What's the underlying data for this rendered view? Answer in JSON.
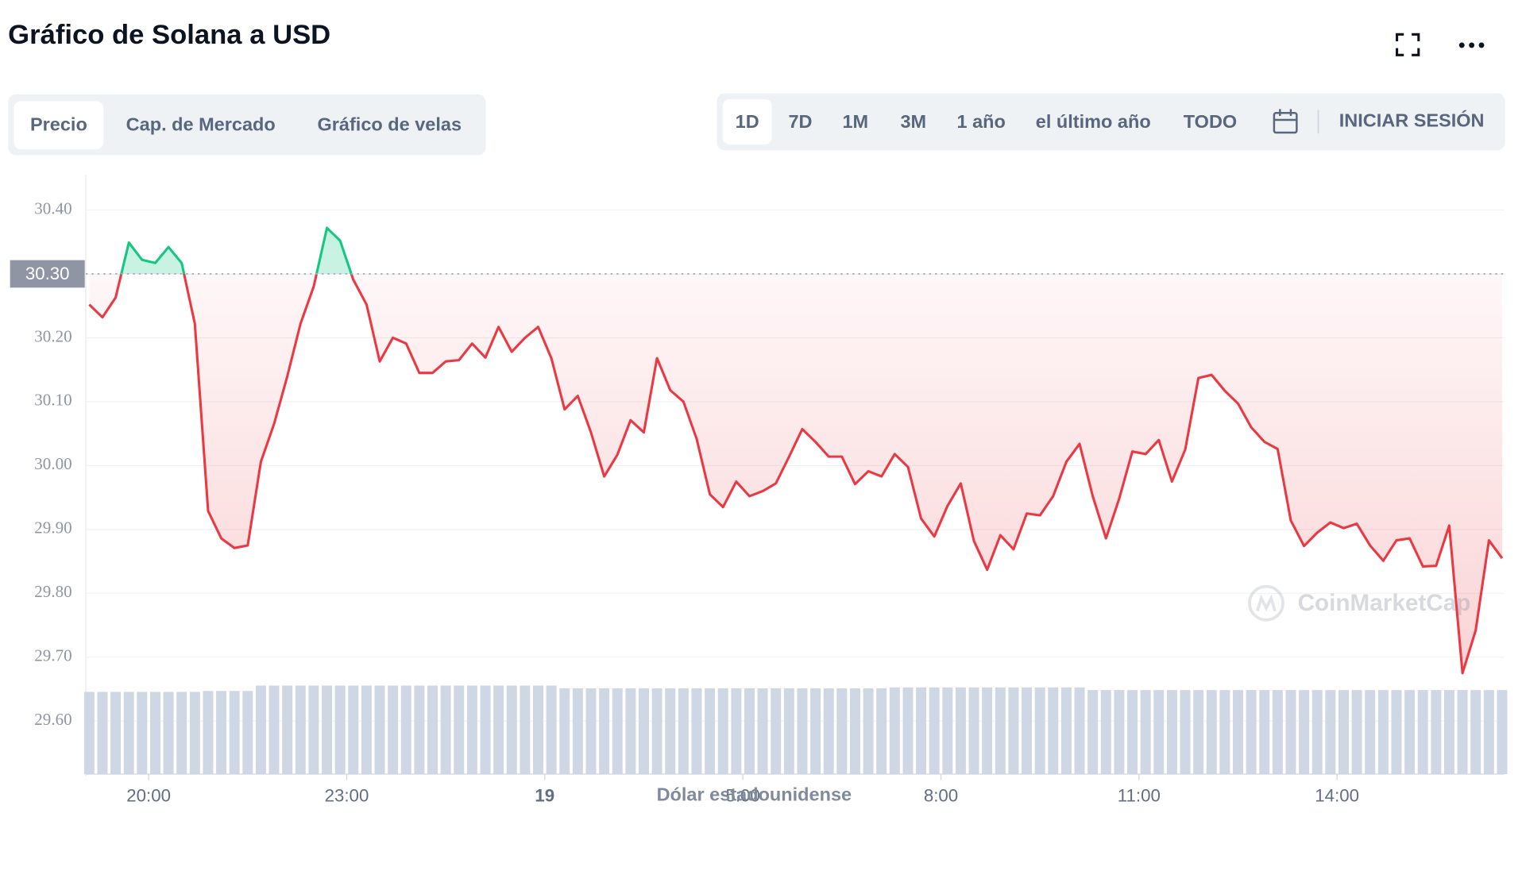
{
  "header": {
    "title": "Gráfico de Solana a USD"
  },
  "tabs": [
    "Precio",
    "Cap. de Mercado",
    "Gráfico de velas"
  ],
  "selected_tab": 0,
  "ranges": [
    "1D",
    "7D",
    "1M",
    "3M",
    "1 año",
    "el último año",
    "TODO"
  ],
  "selected_range": 0,
  "login": "INICIAR SESIÓN",
  "chart_data": {
    "type": "line",
    "xlabel": "Dólar estadounidense",
    "watermark": "CoinMarketCap",
    "up_color": "#16c784",
    "down_color": "#ea3943",
    "volume_color": "#cfd6e4",
    "reference": {
      "value": 30.3,
      "label": "30.30"
    },
    "xlim": [
      19.047,
      40.53
    ],
    "ylim": [
      29.517,
      30.455
    ],
    "xticks": [
      {
        "value": 20,
        "label": "20:00"
      },
      {
        "value": 23,
        "label": "23:00"
      },
      {
        "value": 26,
        "label": "19"
      },
      {
        "value": 29,
        "label": "5:00"
      },
      {
        "value": 32,
        "label": "8:00"
      },
      {
        "value": 35,
        "label": "11:00"
      },
      {
        "value": 38,
        "label": "14:00"
      }
    ],
    "yticks": [
      {
        "value": 29.6,
        "label": "29.60"
      },
      {
        "value": 29.7,
        "label": "29.70"
      },
      {
        "value": 29.8,
        "label": "29.80"
      },
      {
        "value": 29.9,
        "label": "29.90"
      },
      {
        "value": 30.0,
        "label": "30.00"
      },
      {
        "value": 30.1,
        "label": "30.10"
      },
      {
        "value": 30.2,
        "label": "30.20"
      },
      {
        "value": 30.3,
        "label": "30.30"
      },
      {
        "value": 30.4,
        "label": "30.40"
      }
    ],
    "grid": true,
    "x": [
      19.1,
      19.3,
      19.5,
      19.7,
      19.9,
      20.1,
      20.3,
      20.5,
      20.7,
      20.9,
      21.1,
      21.3,
      21.5,
      21.7,
      21.9,
      22.1,
      22.3,
      22.5,
      22.7,
      22.9,
      23.1,
      23.3,
      23.5,
      23.7,
      23.9,
      24.1,
      24.3,
      24.5,
      24.7,
      24.9,
      25.1,
      25.3,
      25.5,
      25.7,
      25.9,
      26.1,
      26.3,
      26.5,
      26.7,
      26.9,
      27.1,
      27.3,
      27.5,
      27.7,
      27.9,
      28.1,
      28.3,
      28.5,
      28.7,
      28.9,
      29.1,
      29.3,
      29.5,
      29.7,
      29.9,
      30.1,
      30.3,
      30.5,
      30.7,
      30.9,
      31.1,
      31.3,
      31.5,
      31.7,
      31.9,
      32.1,
      32.3,
      32.5,
      32.7,
      32.9,
      33.1,
      33.3,
      33.5,
      33.7,
      33.9,
      34.1,
      34.3,
      34.5,
      34.7,
      34.9,
      35.1,
      35.3,
      35.5,
      35.7,
      35.9,
      36.1,
      36.3,
      36.5,
      36.7,
      36.9,
      37.1,
      37.3,
      37.5,
      37.7,
      37.9,
      38.1,
      38.3,
      38.5,
      38.7,
      38.9,
      39.1,
      39.3,
      39.5,
      39.7,
      39.9,
      40.1,
      40.3,
      40.5
    ],
    "values": [
      30.252,
      30.232,
      30.263,
      30.349,
      30.322,
      30.317,
      30.342,
      30.317,
      30.222,
      29.929,
      29.886,
      29.871,
      29.875,
      30.006,
      30.065,
      30.14,
      30.222,
      30.28,
      30.372,
      30.352,
      30.291,
      30.252,
      30.163,
      30.2,
      30.191,
      30.145,
      30.145,
      30.163,
      30.165,
      30.191,
      30.169,
      30.217,
      30.178,
      30.2,
      30.217,
      30.168,
      30.088,
      30.109,
      30.052,
      29.983,
      30.017,
      30.071,
      30.052,
      30.168,
      30.118,
      30.1,
      30.042,
      29.955,
      29.935,
      29.975,
      29.952,
      29.96,
      29.972,
      30.014,
      30.057,
      30.037,
      30.014,
      30.014,
      29.971,
      29.991,
      29.983,
      30.018,
      29.998,
      29.917,
      29.889,
      29.937,
      29.972,
      29.882,
      29.837,
      29.891,
      29.869,
      29.925,
      29.922,
      29.952,
      30.006,
      30.034,
      29.952,
      29.886,
      29.948,
      30.022,
      30.018,
      30.04,
      29.975,
      30.025,
      30.137,
      30.142,
      30.117,
      30.097,
      30.06,
      30.037,
      30.026,
      29.914,
      29.874,
      29.895,
      29.911,
      29.902,
      29.909,
      29.875,
      29.851,
      29.883,
      29.886,
      29.842,
      29.843,
      29.906,
      29.675,
      29.742,
      29.883,
      29.855
    ],
    "volume_lim": [
      0,
      100
    ],
    "volume": [
      91,
      91,
      91,
      91,
      91,
      91,
      91,
      91,
      91,
      92,
      92,
      92,
      92,
      98,
      98,
      98,
      98,
      98,
      98,
      98,
      98,
      98,
      98,
      98,
      98,
      98,
      98,
      98,
      98,
      98,
      98,
      98,
      98,
      98,
      98,
      98,
      95,
      95,
      95,
      95,
      95,
      95,
      95,
      95,
      95,
      95,
      95,
      95,
      95,
      95,
      95,
      95,
      95,
      95,
      95,
      95,
      95,
      95,
      95,
      95,
      95,
      96,
      96,
      96,
      96,
      96,
      96,
      96,
      96,
      96,
      96,
      96,
      96,
      96,
      96,
      96,
      93,
      93,
      93,
      93,
      93,
      93,
      93,
      93,
      93,
      93,
      93,
      93,
      93,
      93,
      93,
      93,
      93,
      93,
      93,
      93,
      93,
      93,
      93,
      93,
      93,
      93,
      93,
      93,
      93,
      93,
      93,
      93
    ]
  }
}
